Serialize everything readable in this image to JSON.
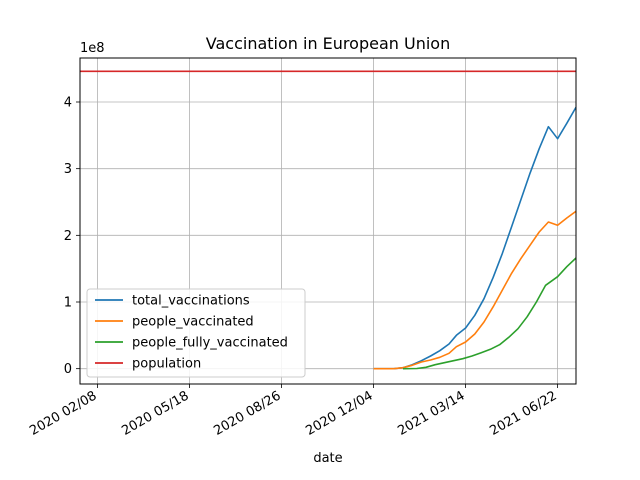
{
  "chart_data": {
    "type": "line",
    "title": "Vaccination in European Union",
    "xlabel": "date",
    "ylabel": "",
    "y_scale_label": "1e8",
    "x_range": [
      "2020-01-20",
      "2021-07-12"
    ],
    "ylim": [
      -23000000.0,
      466000000.0
    ],
    "x_ticks": [
      {
        "date": "2020-02-08",
        "label": "2020 02/08"
      },
      {
        "date": "2020-05-18",
        "label": "2020 05/18"
      },
      {
        "date": "2020-08-26",
        "label": "2020 08/26"
      },
      {
        "date": "2020-12-04",
        "label": "2020 12/04"
      },
      {
        "date": "2021-03-14",
        "label": "2021 03/14"
      },
      {
        "date": "2021-06-22",
        "label": "2021 06/22"
      }
    ],
    "y_ticks": [
      {
        "value": 0,
        "label": "0"
      },
      {
        "value": 100000000,
        "label": "1"
      },
      {
        "value": 200000000,
        "label": "2"
      },
      {
        "value": 300000000,
        "label": "3"
      },
      {
        "value": 400000000,
        "label": "4"
      }
    ],
    "grid": true,
    "legend_position": "lower-left",
    "series": [
      {
        "name": "total_vaccinations",
        "color": "#1f77b4",
        "points": [
          [
            "2020-12-04",
            0
          ],
          [
            "2020-12-26",
            0
          ],
          [
            "2021-01-05",
            1500000
          ],
          [
            "2021-01-15",
            6000000
          ],
          [
            "2021-01-25",
            12000000
          ],
          [
            "2021-02-04",
            19000000
          ],
          [
            "2021-02-14",
            27000000
          ],
          [
            "2021-02-24",
            37000000
          ],
          [
            "2021-03-04",
            50000000
          ],
          [
            "2021-03-14",
            61000000
          ],
          [
            "2021-03-24",
            80000000
          ],
          [
            "2021-04-03",
            105000000
          ],
          [
            "2021-04-13",
            137000000
          ],
          [
            "2021-04-23",
            173000000
          ],
          [
            "2021-05-03",
            213000000
          ],
          [
            "2021-05-13",
            253000000
          ],
          [
            "2021-05-23",
            293000000
          ],
          [
            "2021-06-02",
            330000000
          ],
          [
            "2021-06-12",
            363000000
          ],
          [
            "2021-06-22",
            345000000
          ],
          [
            "2021-07-02",
            368000000
          ],
          [
            "2021-07-12",
            392000000
          ]
        ]
      },
      {
        "name": "people_vaccinated",
        "color": "#ff7f0e",
        "points": [
          [
            "2020-12-04",
            0
          ],
          [
            "2020-12-26",
            0
          ],
          [
            "2021-01-05",
            1500000
          ],
          [
            "2021-01-15",
            5000000
          ],
          [
            "2021-01-25",
            10000000
          ],
          [
            "2021-02-04",
            13000000
          ],
          [
            "2021-02-14",
            17000000
          ],
          [
            "2021-02-24",
            23000000
          ],
          [
            "2021-03-04",
            33000000
          ],
          [
            "2021-03-14",
            40000000
          ],
          [
            "2021-03-24",
            52000000
          ],
          [
            "2021-04-03",
            70000000
          ],
          [
            "2021-04-13",
            93000000
          ],
          [
            "2021-04-23",
            118000000
          ],
          [
            "2021-05-03",
            143000000
          ],
          [
            "2021-05-13",
            165000000
          ],
          [
            "2021-05-23",
            185000000
          ],
          [
            "2021-06-02",
            205000000
          ],
          [
            "2021-06-12",
            220000000
          ],
          [
            "2021-06-22",
            215000000
          ],
          [
            "2021-07-02",
            226000000
          ],
          [
            "2021-07-12",
            236000000
          ]
        ]
      },
      {
        "name": "people_fully_vaccinated",
        "color": "#2ca02c",
        "points": [
          [
            "2021-01-05",
            0
          ],
          [
            "2021-01-20",
            300000
          ],
          [
            "2021-01-30",
            2000000
          ],
          [
            "2021-02-09",
            6000000
          ],
          [
            "2021-02-19",
            9000000
          ],
          [
            "2021-03-01",
            12000000
          ],
          [
            "2021-03-11",
            15000000
          ],
          [
            "2021-03-21",
            19000000
          ],
          [
            "2021-03-31",
            24000000
          ],
          [
            "2021-04-10",
            29000000
          ],
          [
            "2021-04-20",
            36000000
          ],
          [
            "2021-04-30",
            47000000
          ],
          [
            "2021-05-10",
            60000000
          ],
          [
            "2021-05-20",
            78000000
          ],
          [
            "2021-05-30",
            100000000
          ],
          [
            "2021-06-09",
            125000000
          ],
          [
            "2021-06-22",
            138000000
          ],
          [
            "2021-07-02",
            153000000
          ],
          [
            "2021-07-12",
            166000000
          ]
        ]
      },
      {
        "name": "population",
        "color": "#d62728",
        "points": [
          [
            "2020-01-20",
            446000000
          ],
          [
            "2021-07-12",
            446000000
          ]
        ]
      }
    ]
  }
}
